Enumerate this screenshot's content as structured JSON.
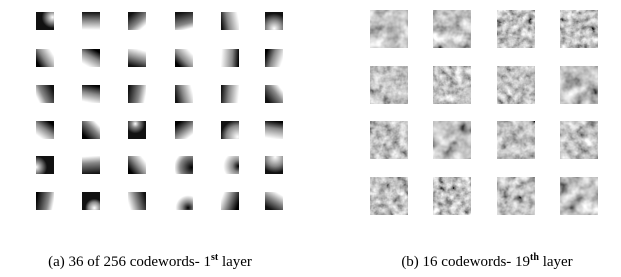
{
  "panels": [
    {
      "caption": {
        "text": "(a) 36 of 256 codewords- 1",
        "sup": "st",
        "after": " layer"
      }
    },
    {
      "caption": {
        "text": "(b) 16 codewords- 19",
        "sup": "th",
        "after": " layer"
      }
    }
  ]
}
